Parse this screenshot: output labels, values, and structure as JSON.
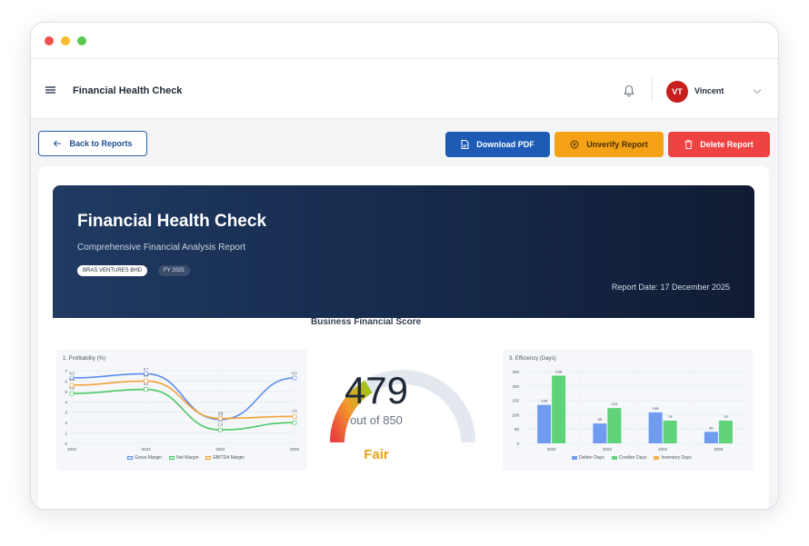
{
  "header": {
    "title": "Financial Health Check",
    "user_name": "Vincent",
    "user_initials": "VT"
  },
  "actions": {
    "back": "Back to Reports",
    "download_pdf": "Download PDF",
    "unverify": "Unverify Report",
    "delete": "Delete Report"
  },
  "banner": {
    "title": "Financial Health Check",
    "subtitle": "Comprehensive Financial Analysis Report",
    "company_tag": "BRAS VENTURES BHD",
    "fy_tag": "FY 2025",
    "report_date": "Report Date: 17 December 2025"
  },
  "score": {
    "title": "Business Financial Score",
    "value": "479",
    "out_of": "out of 850",
    "rating": "Fair",
    "min": 300,
    "max": 850
  },
  "colors": {
    "primary": "#1d5bb5",
    "warning": "#f5a218",
    "danger": "#ef4343",
    "banner_dark": "#15294a",
    "gross": "#5b8def",
    "net": "#4cc764",
    "ebitda": "#f2a33a",
    "debtor": "#6f9bf0",
    "creditor": "#5fd27a",
    "inventory": "#f4b34a"
  },
  "chart_data": [
    {
      "type": "line",
      "title": "1. Profitability (%)",
      "x": [
        "2022",
        "2023",
        "2024",
        "2025"
      ],
      "ylim": [
        0,
        7
      ],
      "yticks": [
        "0",
        "1",
        "2",
        "3",
        "4",
        "5",
        "6",
        "7"
      ],
      "series": [
        {
          "name": "Gross Margin",
          "values": [
            6.3,
            6.7,
            2.3,
            6.3
          ]
        },
        {
          "name": "Net Margin",
          "values": [
            4.8,
            5.2,
            1.3,
            2.0
          ]
        },
        {
          "name": "EBITDA Margin",
          "values": [
            5.6,
            6.0,
            2.4,
            2.6
          ]
        }
      ],
      "data_labels": {
        "Gross Margin": [
          "6.3",
          "6.7",
          "2.3",
          "6.3"
        ],
        "Net Margin": [
          "4.8",
          "5.2",
          "1.3",
          "2.0"
        ],
        "EBITDA Margin": [
          "5.6",
          "6.0",
          "2.4",
          "2.6"
        ]
      }
    },
    {
      "type": "bar",
      "title": "3. Efficiency (Days)",
      "categories": [
        "2022",
        "2023",
        "2024",
        "2025"
      ],
      "ylim": [
        0,
        250
      ],
      "yticks": [
        "0",
        "50",
        "100",
        "150",
        "200",
        "250"
      ],
      "series": [
        {
          "name": "Debtor Days",
          "values": [
            134,
            69,
            108,
            40
          ]
        },
        {
          "name": "Creditor Days",
          "values": [
            236,
            123,
            79,
            79
          ]
        },
        {
          "name": "Inventory Days",
          "values": [
            0,
            0,
            0,
            0
          ]
        }
      ]
    }
  ]
}
